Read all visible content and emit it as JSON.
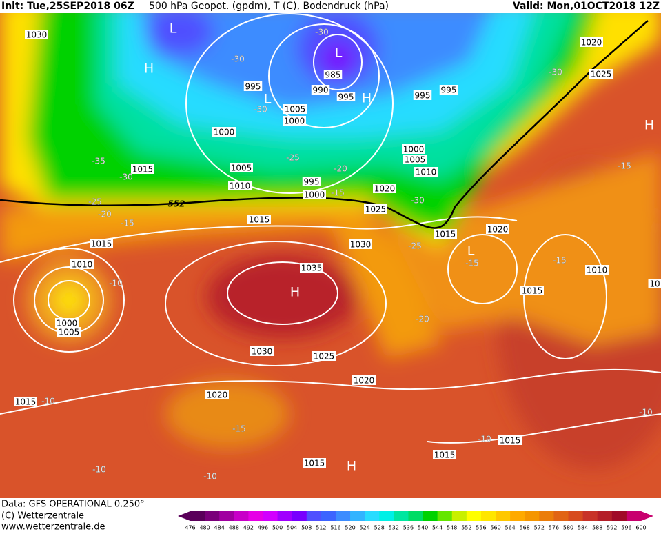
{
  "header": {
    "init": "Init: Tue,25SEP2018 06Z",
    "fields": "500 hPa Geopot. (gpdm), T (C), Bodendruck (hPa)",
    "valid": "Valid: Mon,01OCT2018 12Z"
  },
  "map": {
    "pressure_labels": [
      "1030",
      "1020",
      "1025",
      "995",
      "990",
      "985",
      "995",
      "995",
      "995",
      "1005",
      "1000",
      "1000",
      "1000",
      "1005",
      "1010",
      "1015",
      "1005",
      "995",
      "1010",
      "1000",
      "1020",
      "1025",
      "1015",
      "1015",
      "1020",
      "1030",
      "1015",
      "1035",
      "1010",
      "1010",
      "1015",
      "1000",
      "1005",
      "1030",
      "1025",
      "1020",
      "1020",
      "1015",
      "1015",
      "1015",
      "1015",
      "10"
    ],
    "temperature_labels": [
      "-30",
      "-30",
      "-30",
      "-30",
      "-35",
      "-30",
      "-25",
      "-20",
      "-15",
      "-25",
      "-20",
      "-15",
      "-30",
      "-25",
      "-15",
      "-15",
      "-15",
      "-10",
      "-20",
      "-10",
      "-15",
      "-10",
      "-10",
      "-10",
      "-10"
    ],
    "contour_label": "552",
    "centers": [
      "L",
      "H",
      "L",
      "L",
      "H",
      "H",
      "L",
      "H",
      "H"
    ]
  },
  "footer": {
    "data": "Data: GFS OPERATIONAL 0.250°",
    "copyright": "(C) Wetterzentrale",
    "url": "www.wetterzentrale.de"
  },
  "colorbar": {
    "ticks": [
      476,
      480,
      484,
      488,
      492,
      496,
      500,
      504,
      508,
      512,
      516,
      520,
      524,
      528,
      532,
      536,
      540,
      544,
      548,
      552,
      556,
      560,
      564,
      568,
      572,
      576,
      580,
      584,
      588,
      592,
      596,
      600
    ],
    "colors": [
      "#5a005a",
      "#7a007a",
      "#a000a0",
      "#c800c8",
      "#e600e6",
      "#d200ff",
      "#a000ff",
      "#7800ff",
      "#5050ff",
      "#3c64ff",
      "#3c8cff",
      "#32b4ff",
      "#28dcff",
      "#00f0e6",
      "#00e6a0",
      "#00dc64",
      "#00d200",
      "#64e600",
      "#c8f000",
      "#ffff00",
      "#ffe600",
      "#ffc800",
      "#ffaa00",
      "#f59600",
      "#eb7d0a",
      "#e16414",
      "#d74b1e",
      "#c83228",
      "#b41e28",
      "#a00a28",
      "#c8006e"
    ]
  }
}
